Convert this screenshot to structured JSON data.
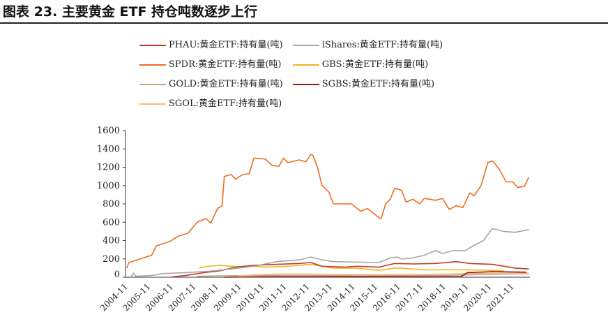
{
  "title": "图表 23. 主要黄金 ETF 持仓吨数逐步上行",
  "chart_data": {
    "type": "line",
    "title": "图表 23. 主要黄金 ETF 持仓吨数逐步上行",
    "xlabel": "",
    "ylabel": "",
    "ylim": [
      0,
      1600
    ],
    "yticks": [
      "0",
      "200",
      "400",
      "600",
      "800",
      "1000",
      "1200",
      "1400",
      "1600"
    ],
    "xticks": [
      "2004-11",
      "2005-11",
      "2006-11",
      "2007-11",
      "2008-11",
      "2009-11",
      "2010-11",
      "2011-11",
      "2012-11",
      "2013-11",
      "2014-11",
      "2015-11",
      "2016-11",
      "2017-11",
      "2018-11",
      "2019-11",
      "2020-11",
      "2021-11"
    ],
    "xlim": [
      2004.85,
      2022.65
    ],
    "legend_position": "top",
    "series": [
      {
        "name": "PHAU:黄金ETF:持有量(吨)",
        "color": "#c0392b",
        "points": [
          [
            2006.8,
            0
          ],
          [
            2007.5,
            20
          ],
          [
            2008.3,
            50
          ],
          [
            2009.0,
            70
          ],
          [
            2009.7,
            110
          ],
          [
            2010.5,
            130
          ],
          [
            2011.5,
            140
          ],
          [
            2012.5,
            150
          ],
          [
            2013.0,
            160
          ],
          [
            2013.5,
            120
          ],
          [
            2014.5,
            110
          ],
          [
            2015,
            120
          ],
          [
            2016,
            110
          ],
          [
            2016.7,
            150
          ],
          [
            2017.5,
            145
          ],
          [
            2018.5,
            150
          ],
          [
            2019.4,
            170
          ],
          [
            2020,
            150
          ],
          [
            2021,
            140
          ],
          [
            2022,
            100
          ],
          [
            2022.6,
            90
          ]
        ]
      },
      {
        "name": "iShares:黄金ETF:持有量(吨)",
        "color": "#a6a6a6",
        "points": [
          [
            2005.1,
            10
          ],
          [
            2005.2,
            45
          ],
          [
            2005.3,
            10
          ],
          [
            2006.0,
            20
          ],
          [
            2006.5,
            40
          ],
          [
            2007.5,
            50
          ],
          [
            2008.5,
            65
          ],
          [
            2009.5,
            90
          ],
          [
            2010.5,
            120
          ],
          [
            2011.5,
            170
          ],
          [
            2012.5,
            190
          ],
          [
            2013.0,
            220
          ],
          [
            2013.5,
            190
          ],
          [
            2014.0,
            170
          ],
          [
            2015,
            165
          ],
          [
            2016,
            160
          ],
          [
            2016.5,
            210
          ],
          [
            2016.8,
            220
          ],
          [
            2017.0,
            200
          ],
          [
            2017.5,
            210
          ],
          [
            2018.0,
            240
          ],
          [
            2018.5,
            290
          ],
          [
            2018.8,
            260
          ],
          [
            2019.3,
            290
          ],
          [
            2019.8,
            290
          ],
          [
            2020.2,
            350
          ],
          [
            2020.6,
            400
          ],
          [
            2021.0,
            530
          ],
          [
            2021.5,
            500
          ],
          [
            2022.0,
            490
          ],
          [
            2022.6,
            520
          ]
        ]
      },
      {
        "name": "SPDR:黄金ETF:持有量(吨)",
        "color": "#ed6d1f",
        "points": [
          [
            2004.9,
            100
          ],
          [
            2005.0,
            160
          ],
          [
            2005.5,
            200
          ],
          [
            2006.0,
            240
          ],
          [
            2006.2,
            340
          ],
          [
            2006.8,
            390
          ],
          [
            2007.2,
            450
          ],
          [
            2007.6,
            480
          ],
          [
            2008.0,
            600
          ],
          [
            2008.4,
            640
          ],
          [
            2008.6,
            590
          ],
          [
            2008.9,
            750
          ],
          [
            2009.1,
            780
          ],
          [
            2009.2,
            1100
          ],
          [
            2009.5,
            1120
          ],
          [
            2009.7,
            1070
          ],
          [
            2010.0,
            1120
          ],
          [
            2010.3,
            1130
          ],
          [
            2010.5,
            1300
          ],
          [
            2011.0,
            1290
          ],
          [
            2011.3,
            1220
          ],
          [
            2011.6,
            1210
          ],
          [
            2011.8,
            1300
          ],
          [
            2012.0,
            1250
          ],
          [
            2012.5,
            1280
          ],
          [
            2012.8,
            1260
          ],
          [
            2013.0,
            1340
          ],
          [
            2013.1,
            1330
          ],
          [
            2013.3,
            1200
          ],
          [
            2013.5,
            1000
          ],
          [
            2013.8,
            930
          ],
          [
            2014.0,
            800
          ],
          [
            2014.3,
            800
          ],
          [
            2014.8,
            800
          ],
          [
            2015.2,
            720
          ],
          [
            2015.5,
            750
          ],
          [
            2015.8,
            690
          ],
          [
            2016.0,
            650
          ],
          [
            2016.1,
            640
          ],
          [
            2016.3,
            800
          ],
          [
            2016.5,
            850
          ],
          [
            2016.7,
            970
          ],
          [
            2017.0,
            950
          ],
          [
            2017.2,
            820
          ],
          [
            2017.5,
            850
          ],
          [
            2017.8,
            800
          ],
          [
            2018.0,
            860
          ],
          [
            2018.5,
            840
          ],
          [
            2018.8,
            860
          ],
          [
            2019.1,
            740
          ],
          [
            2019.4,
            780
          ],
          [
            2019.7,
            760
          ],
          [
            2020.0,
            920
          ],
          [
            2020.2,
            890
          ],
          [
            2020.5,
            1000
          ],
          [
            2020.8,
            1250
          ],
          [
            2021.0,
            1270
          ],
          [
            2021.3,
            1180
          ],
          [
            2021.6,
            1040
          ],
          [
            2021.9,
            1040
          ],
          [
            2022.1,
            980
          ],
          [
            2022.4,
            990
          ],
          [
            2022.6,
            1090
          ]
        ]
      },
      {
        "name": "GBS:黄金ETF:持有量(吨)",
        "color": "#f2b619",
        "points": [
          [
            2008.1,
            100
          ],
          [
            2008.5,
            120
          ],
          [
            2009.0,
            130
          ],
          [
            2009.5,
            120
          ],
          [
            2010.0,
            110
          ],
          [
            2010.5,
            120
          ],
          [
            2011,
            110
          ],
          [
            2012,
            120
          ],
          [
            2013,
            140
          ],
          [
            2013.5,
            120
          ],
          [
            2014,
            100
          ],
          [
            2015,
            100
          ],
          [
            2016,
            75
          ],
          [
            2016.7,
            100
          ],
          [
            2017,
            100
          ],
          [
            2018,
            80
          ],
          [
            2019,
            80
          ],
          [
            2020,
            80
          ],
          [
            2021,
            75
          ],
          [
            2021.5,
            70
          ]
        ]
      },
      {
        "name": "GOLD:黄金ETF:持有量(吨)",
        "color": "#c4a574",
        "points": [
          [
            2008.0,
            10
          ],
          [
            2009,
            15
          ],
          [
            2011,
            20
          ],
          [
            2013,
            20
          ],
          [
            2015,
            15
          ],
          [
            2017,
            18
          ],
          [
            2019,
            20
          ],
          [
            2020.5,
            30
          ],
          [
            2022.6,
            40
          ]
        ]
      },
      {
        "name": "SGBS:黄金ETF:持有量(吨)",
        "color": "#8b1a1a",
        "points": [
          [
            2009.2,
            0
          ],
          [
            2011,
            5
          ],
          [
            2013,
            5
          ],
          [
            2015,
            5
          ],
          [
            2017,
            5
          ],
          [
            2019.6,
            5
          ],
          [
            2019.7,
            20
          ],
          [
            2019.9,
            50
          ],
          [
            2021,
            60
          ],
          [
            2022.5,
            55
          ]
        ]
      },
      {
        "name": "SGOL:黄金ETF:持有量(吨)",
        "color": "#f7b98a",
        "points": [
          [
            2009.8,
            15
          ],
          [
            2010.5,
            25
          ],
          [
            2011.5,
            35
          ],
          [
            2013,
            35
          ],
          [
            2014,
            30
          ],
          [
            2016,
            28
          ],
          [
            2018,
            30
          ],
          [
            2020,
            40
          ],
          [
            2022.6,
            45
          ]
        ]
      }
    ]
  }
}
